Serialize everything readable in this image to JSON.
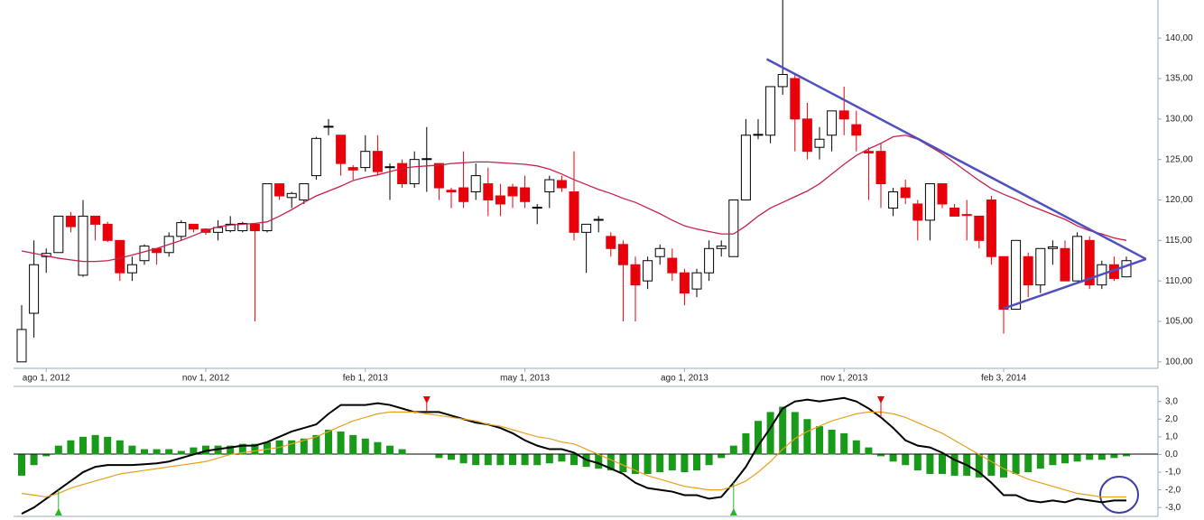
{
  "chart_data": [
    {
      "type": "candlestick",
      "categories": [
        null,
        null,
        "ago 1, 2012",
        null,
        null,
        null,
        null,
        null,
        null,
        null,
        null,
        null,
        null,
        null,
        null,
        "nov 1, 2012",
        null,
        null,
        null,
        null,
        null,
        null,
        null,
        null,
        null,
        null,
        null,
        null,
        "feb 1, 2013",
        null,
        null,
        null,
        null,
        null,
        null,
        null,
        null,
        null,
        null,
        null,
        null,
        "may 1, 2013",
        null,
        null,
        null,
        null,
        null,
        null,
        null,
        null,
        null,
        null,
        null,
        null,
        "ago 1, 2013",
        null,
        null,
        null,
        null,
        null,
        null,
        null,
        null,
        null,
        null,
        null,
        null,
        "nov 1, 2013",
        null,
        null,
        null,
        null,
        null,
        null,
        null,
        null,
        null,
        null,
        null,
        null,
        "feb 3, 2014",
        null,
        null,
        null,
        null,
        null,
        null,
        null,
        null,
        null,
        null
      ],
      "open": [
        100,
        106,
        113,
        113.5,
        118,
        110.7,
        118,
        117,
        115,
        111,
        112.5,
        114,
        113.5,
        115.5,
        117,
        116.4,
        116,
        116.2,
        116.2,
        117,
        116.2,
        122,
        120.3,
        120,
        123,
        129,
        128,
        124,
        124,
        126,
        124,
        124.5,
        122,
        125,
        124.5,
        121.2,
        121.5,
        121,
        122,
        120.5,
        121.6,
        121.5,
        119,
        121,
        122.4,
        121,
        116,
        117.5,
        115.5,
        114.5,
        112,
        110,
        113,
        112.8,
        111,
        109,
        111,
        114,
        113,
        120,
        128,
        128,
        134,
        135,
        130,
        126.5,
        128,
        131,
        129.3,
        126,
        126,
        119,
        121.5,
        119.5,
        117.5,
        122,
        119,
        118.2,
        118,
        120,
        113,
        106.5,
        113,
        109.5,
        114,
        114,
        110,
        115,
        109.5,
        112,
        110.5
      ],
      "high": [
        107,
        115,
        114,
        118,
        118.5,
        120,
        118,
        117.3,
        115,
        113,
        114.5,
        114,
        116,
        117.5,
        117,
        116.5,
        117.5,
        118,
        117.3,
        117,
        122,
        122,
        121,
        122,
        127.8,
        130,
        128,
        124.3,
        128,
        128,
        124.5,
        125,
        126,
        129,
        124.5,
        121.5,
        126,
        124.5,
        124,
        122,
        122,
        123,
        119.5,
        123,
        123,
        126,
        117,
        118,
        116,
        115,
        113,
        113,
        114.5,
        114,
        111.5,
        111.5,
        115,
        115,
        120,
        130,
        130,
        134,
        145,
        135.5,
        132,
        129,
        131,
        134,
        131,
        126.5,
        127,
        121.5,
        122.5,
        120,
        122,
        122,
        119.5,
        120,
        118,
        120.5,
        113,
        115,
        113.5,
        114,
        115,
        115,
        116,
        115.5,
        112.5,
        113,
        113
      ],
      "low": [
        100,
        103,
        111,
        113.5,
        116,
        110.5,
        115,
        114.8,
        110,
        110,
        112,
        112,
        113,
        115,
        116,
        115.7,
        115,
        116,
        116,
        105,
        116,
        120,
        119,
        119.5,
        122.5,
        128,
        123,
        122.5,
        123.5,
        123,
        120,
        121.5,
        121.5,
        121,
        120,
        119,
        119,
        120,
        118,
        118,
        119,
        119,
        117,
        119,
        121,
        115,
        111,
        116,
        113,
        105,
        105,
        109,
        112,
        110,
        107,
        108,
        110,
        113,
        113,
        120,
        127.5,
        127,
        133,
        126,
        125,
        125,
        126,
        128,
        126,
        120,
        119,
        118,
        119.5,
        115,
        115,
        119,
        118,
        115,
        114,
        112,
        103.5,
        106.5,
        108,
        108.5,
        112,
        110,
        110,
        109,
        109,
        110,
        110.5
      ],
      "close": [
        104,
        112,
        113.4,
        118,
        116.7,
        118,
        117,
        115,
        111,
        112,
        114.3,
        113.5,
        115.5,
        117.2,
        116.4,
        116,
        116.6,
        117,
        117.1,
        116.2,
        122,
        120.5,
        120.8,
        122,
        127.6,
        129.1,
        124.5,
        123.7,
        126,
        123.5,
        124.1,
        122,
        125,
        125.1,
        121.5,
        121,
        119.8,
        123,
        120,
        119.5,
        120.5,
        119.8,
        119.1,
        122.5,
        121.5,
        116,
        117,
        117.6,
        114,
        112,
        109.5,
        112.5,
        114,
        111,
        108.5,
        111,
        114,
        114.3,
        120,
        128,
        128.1,
        134,
        135.5,
        130,
        126,
        127.5,
        131,
        130,
        128,
        125.8,
        122,
        121,
        120.3,
        117.5,
        122,
        119.5,
        118,
        118.1,
        115,
        113,
        106.5,
        115,
        109.5,
        114,
        114.2,
        110,
        115.5,
        109.5,
        112,
        110.3,
        112.5
      ],
      "up_color": "#ffffff",
      "down_color": "#e8000b",
      "series": [
        {
          "color": "#c8204a",
          "values": [
            113.7,
            113.4,
            113.1,
            112.8,
            112.6,
            112.4,
            112.4,
            112.5,
            112.8,
            113.2,
            113.6,
            114.0,
            114.5,
            115.0,
            115.6,
            116.2,
            116.7,
            116.9,
            117.0,
            117.1,
            117.3,
            118.0,
            118.8,
            119.7,
            120.5,
            121.1,
            121.7,
            122.4,
            122.8,
            123.1,
            123.5,
            123.9,
            124.1,
            124.2,
            124.3,
            124.5,
            124.6,
            124.7,
            124.7,
            124.6,
            124.5,
            124.4,
            124.2,
            123.8,
            123.2,
            122.5,
            121.9,
            121.3,
            120.8,
            120.2,
            119.7,
            119.0,
            118.3,
            117.5,
            116.8,
            116.4,
            116.1,
            115.8,
            115.8,
            116.8,
            118.0,
            119.0,
            119.7,
            120.4,
            121.1,
            122.0,
            123.2,
            124.4,
            125.5,
            126.3,
            127.0,
            127.8,
            128.0,
            127.5,
            126.6,
            125.7,
            124.6,
            123.5,
            122.4,
            121.4,
            120.7,
            120.1,
            119.4,
            118.8,
            118.2,
            117.6,
            116.8,
            116.2,
            115.8,
            115.3,
            115.0
          ]
        }
      ],
      "trendlines": [
        {
          "color": "#4f4fbf",
          "x": [
            60.7,
            91.6
          ],
          "y": [
            137.4,
            112.7
          ]
        },
        {
          "color": "#4f4fbf",
          "x": [
            80,
            91.6
          ],
          "y": [
            106.6,
            112.7
          ]
        }
      ],
      "ylim": [
        99.2,
        144.7
      ],
      "yticks": [
        {
          "value": 100,
          "label": "100,00"
        },
        {
          "value": 105,
          "label": "105,00"
        },
        {
          "value": 110,
          "label": "110,00"
        },
        {
          "value": 115,
          "label": "115,00"
        },
        {
          "value": 120,
          "label": "120,00"
        },
        {
          "value": 125,
          "label": "125,00"
        },
        {
          "value": 130,
          "label": "130,00"
        },
        {
          "value": 135,
          "label": "135,00"
        },
        {
          "value": 140,
          "label": "140,00"
        }
      ]
    },
    {
      "type": "macd",
      "histogram": {
        "color": "#1a9a1a",
        "values": [
          -1.2,
          -0.6,
          -0.1,
          0.5,
          0.8,
          1.0,
          1.1,
          1.0,
          0.8,
          0.5,
          0.3,
          0.3,
          0.3,
          0.2,
          0.4,
          0.5,
          0.5,
          0.5,
          0.6,
          0.6,
          0.7,
          0.8,
          0.8,
          0.9,
          1.1,
          1.4,
          1.3,
          1.1,
          0.9,
          0.7,
          0.5,
          0.3,
          0,
          0,
          -0.2,
          -0.3,
          -0.5,
          -0.6,
          -0.6,
          -0.6,
          -0.6,
          -0.6,
          -0.6,
          -0.5,
          -0.4,
          -0.6,
          -0.7,
          -0.8,
          -0.9,
          -1.0,
          -1.1,
          -1.1,
          -1.0,
          -0.9,
          -1.0,
          -0.9,
          -0.6,
          -0.2,
          0.5,
          1.2,
          1.9,
          2.4,
          2.7,
          2.4,
          2.0,
          1.6,
          1.4,
          1.2,
          0.8,
          0.4,
          -0.1,
          -0.4,
          -0.6,
          -0.9,
          -1.1,
          -1.1,
          -1.2,
          -1.2,
          -1.3,
          -1.2,
          -1.3,
          -1.1,
          -1.0,
          -0.8,
          -0.6,
          -0.5,
          -0.4,
          -0.3,
          -0.3,
          -0.2,
          -0.1
        ]
      },
      "series": [
        {
          "color": "#000000",
          "values": [
            -3.35,
            -3.0,
            -2.5,
            -2.0,
            -1.5,
            -1.0,
            -0.7,
            -0.6,
            -0.6,
            -0.6,
            -0.55,
            -0.5,
            -0.4,
            -0.2,
            0,
            0.2,
            0.3,
            0.4,
            0.5,
            0.5,
            0.7,
            1.0,
            1.3,
            1.5,
            1.7,
            2.3,
            2.8,
            2.8,
            2.8,
            2.9,
            2.8,
            2.6,
            2.4,
            2.4,
            2.4,
            2.2,
            2.0,
            1.8,
            1.7,
            1.5,
            1.2,
            0.8,
            0.5,
            0.3,
            0.3,
            0.1,
            -0.3,
            -0.5,
            -0.8,
            -1.1,
            -1.6,
            -1.9,
            -2.0,
            -2.1,
            -2.3,
            -2.3,
            -2.5,
            -2.4,
            -1.6,
            -0.7,
            0.5,
            1.5,
            2.6,
            3.0,
            3.1,
            3.0,
            3.1,
            3.2,
            3.0,
            2.6,
            2.1,
            1.5,
            0.8,
            0.5,
            0.4,
            0.1,
            -0.3,
            -0.6,
            -1.0,
            -1.6,
            -2.3,
            -2.3,
            -2.6,
            -2.7,
            -2.6,
            -2.7,
            -2.5,
            -2.6,
            -2.7,
            -2.6,
            -2.6
          ]
        },
        {
          "color": "#e8a020",
          "values": [
            -2.2,
            -2.3,
            -2.4,
            -2.2,
            -1.9,
            -1.7,
            -1.5,
            -1.3,
            -1.1,
            -1.0,
            -0.9,
            -0.8,
            -0.7,
            -0.6,
            -0.5,
            -0.4,
            -0.2,
            0,
            0.1,
            0.2,
            0.3,
            0.4,
            0.6,
            0.8,
            1.0,
            1.3,
            1.6,
            1.9,
            2.1,
            2.3,
            2.4,
            2.4,
            2.4,
            2.3,
            2.2,
            2.1,
            2.0,
            1.9,
            1.7,
            1.6,
            1.4,
            1.2,
            1.0,
            0.9,
            0.7,
            0.6,
            0.3,
            0,
            -0.3,
            -0.6,
            -0.9,
            -1.2,
            -1.4,
            -1.6,
            -1.8,
            -1.9,
            -2.0,
            -2.0,
            -1.8,
            -1.5,
            -1.0,
            -0.4,
            0.3,
            0.9,
            1.3,
            1.6,
            1.9,
            2.1,
            2.3,
            2.4,
            2.4,
            2.3,
            2.1,
            1.8,
            1.5,
            1.2,
            0.8,
            0.4,
            0,
            -0.4,
            -0.8,
            -1.1,
            -1.4,
            -1.6,
            -1.8,
            -2.0,
            -2.2,
            -2.3,
            -2.4,
            -2.4,
            -2.4
          ]
        }
      ],
      "buy_markers": [
        3,
        58
      ],
      "buy_color": "#2bb52b",
      "sell_markers": [
        33,
        70
      ],
      "sell_color": "#e8000b",
      "ylim": [
        -3.5,
        3.85
      ],
      "yticks": [
        {
          "value": -3,
          "label": "-3,0"
        },
        {
          "value": -2,
          "label": "-2,0"
        },
        {
          "value": -1,
          "label": "-1,0"
        },
        {
          "value": 0,
          "label": "0,0"
        },
        {
          "value": 1,
          "label": "1,0"
        },
        {
          "value": 2,
          "label": "2,0"
        },
        {
          "value": 3,
          "label": "3,0"
        }
      ]
    }
  ]
}
